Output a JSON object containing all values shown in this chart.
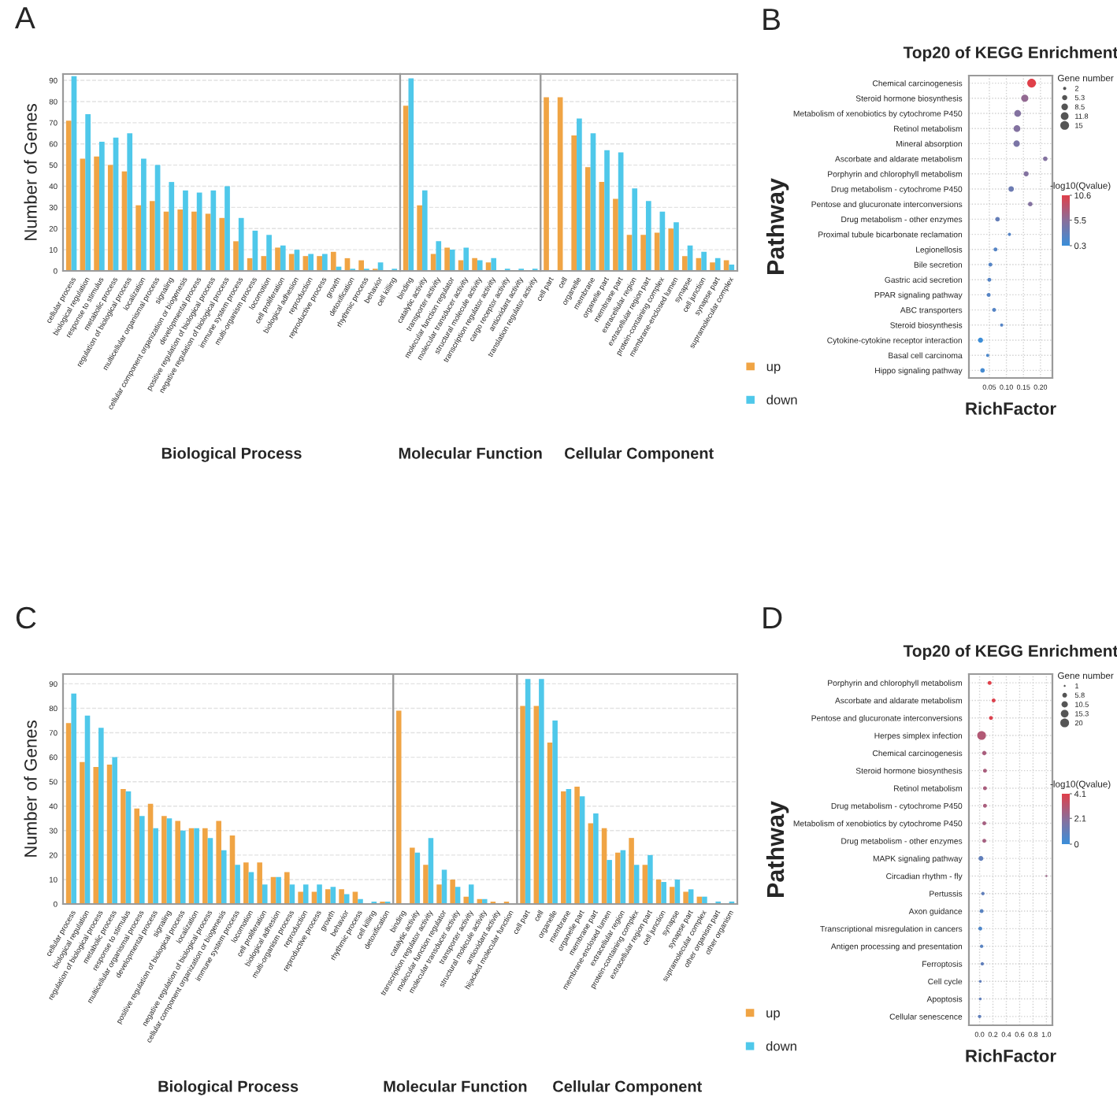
{
  "chart_data": [
    {
      "type": "bar",
      "annotations": [
        "A"
      ],
      "xlabel": "Biological Process",
      "ylabel": "Number of Genes",
      "grid": "y",
      "ylim": [
        0,
        93
      ],
      "yticks": [
        0,
        10,
        20,
        30,
        40,
        50,
        60,
        70,
        80,
        90
      ],
      "categories": [
        "cellular process",
        "biological regulation",
        "response to stimulus",
        "metabolic process",
        "regulation of biological process",
        "localization",
        "multicellular organismal process",
        "signaling",
        "cellular component organization or biogenesis",
        "developmental process",
        "positive regulation of biological process",
        "negative regulation of biological process",
        "immune system process",
        "multi-organism process",
        "locomotion",
        "cell proliferation",
        "biological adhesion",
        "reproduction",
        "reproductive process",
        "growth",
        "detoxification",
        "rhythmic process",
        "behavior",
        "cell killing"
      ],
      "series": [
        {
          "color": "#f0a444",
          "values": [
            71,
            53,
            54,
            50,
            47,
            31,
            33,
            28,
            29,
            28,
            27,
            25,
            14,
            6,
            7,
            11,
            8,
            7,
            7,
            9,
            6,
            5,
            1,
            0
          ]
        },
        {
          "color": "#4fc8ea",
          "values": [
            92,
            74,
            61,
            63,
            65,
            53,
            50,
            42,
            38,
            37,
            38,
            40,
            25,
            19,
            17,
            12,
            10,
            8,
            8,
            2,
            1,
            1,
            4,
            1
          ]
        }
      ]
    },
    {
      "type": "bar",
      "xlabel": "Molecular Function",
      "grid": "y",
      "tick_labels": "x",
      "ylim": [
        0,
        93
      ],
      "yticks": [
        0,
        10,
        20,
        30,
        40,
        50,
        60,
        70,
        80,
        90
      ],
      "categories": [
        "binding",
        "catalytic activity",
        "transporter activity",
        "molecular function regulator",
        "molecular transducer activity",
        "structural molecule activity",
        "transcription regulator activity",
        "cargo receptor activity",
        "antioxidant activity",
        "translation regulator activity"
      ],
      "series": [
        {
          "color": "#f0a444",
          "values": [
            78,
            31,
            8,
            11,
            5,
            6,
            4,
            0,
            0,
            0
          ]
        },
        {
          "color": "#4fc8ea",
          "values": [
            91,
            38,
            14,
            10,
            11,
            5,
            6,
            1,
            1,
            1
          ]
        }
      ]
    },
    {
      "type": "bar",
      "xlabel": "Cellular Component",
      "grid": "y",
      "tick_labels": "x",
      "legend": "bottom right",
      "ylim": [
        0,
        93
      ],
      "yticks": [
        0,
        10,
        20,
        30,
        40,
        50,
        60,
        70,
        80,
        90
      ],
      "categories": [
        "cell part",
        "cell",
        "organelle",
        "membrane",
        "organelle part",
        "membrane part",
        "extracellular region",
        "extracellular region part",
        "protein-containing complex",
        "membrane-enclosed lumen",
        "synapse",
        "cell junction",
        "synapse part",
        "supramolecular complex"
      ],
      "series": [
        {
          "name": "up",
          "color": "#f0a444",
          "values": [
            82,
            82,
            64,
            49,
            42,
            34,
            17,
            17,
            18,
            20,
            7,
            6,
            4,
            5
          ]
        },
        {
          "name": "down",
          "color": "#4fc8ea",
          "values": [
            null,
            null,
            72,
            65,
            57,
            56,
            39,
            33,
            28,
            23,
            12,
            9,
            6,
            3
          ]
        }
      ]
    },
    {
      "type": "bubble",
      "orientation": "horizontal",
      "annotations": [
        "B"
      ],
      "title": "Top20 of KEGG Enrichment",
      "xlabel": "RichFactor",
      "ylabel": "Pathway",
      "legend_title": "Gene number",
      "clabel": "-log10(Qvalue)",
      "grid": true,
      "xlim": [
        -0.01,
        0.235
      ],
      "xticks": [
        {
          "value": 0.05,
          "label": "0.05"
        },
        {
          "value": 0.1,
          "label": "0.10"
        },
        0.15,
        {
          "value": 0.2,
          "label": "0.20"
        }
      ],
      "categories": [
        "Chemical carcinogenesis",
        "Steroid hormone biosynthesis",
        "Metabolism of xenobiotics by cytochrome P450",
        "Retinol metabolism",
        "Mineral absorption",
        "Ascorbate and aldarate metabolism",
        "Porphyrin and chlorophyll metabolism",
        "Drug metabolism - cytochrome P450",
        "Pentose and glucuronate interconversions",
        "Drug metabolism - other enzymes",
        "Proximal tubule bicarbonate reclamation",
        "Legionellosis",
        "Bile secretion",
        "Gastric acid secretion",
        "PPAR signaling pathway",
        "ABC transporters",
        "Steroid biosynthesis",
        "Cytokine-cytokine receptor interaction",
        "Basal cell carcinoma",
        "Hippo signaling pathway"
      ],
      "values": [
        0.174,
        0.154,
        0.133,
        0.131,
        0.13,
        0.214,
        0.158,
        0.114,
        0.17,
        0.074,
        0.109,
        0.068,
        0.053,
        0.05,
        0.048,
        0.064,
        0.086,
        0.024,
        0.045,
        0.03
      ],
      "sizes": [
        15,
        10,
        9,
        9,
        8,
        4,
        5,
        6,
        4,
        4,
        2,
        3,
        3,
        3,
        3,
        3,
        2,
        5,
        2,
        4
      ],
      "size_legend": [
        2,
        5.3,
        8.5,
        11.8,
        15
      ],
      "cvalues": [
        10.6,
        6,
        5,
        5,
        4.5,
        5,
        5,
        3.5,
        5,
        3,
        2,
        2,
        2,
        2,
        2,
        2,
        2,
        0.5,
        1.5,
        1
      ],
      "clim": [
        0.3,
        10.6
      ],
      "cticks": [
        0.3,
        5.5,
        10.6
      ]
    },
    {
      "type": "bar",
      "annotations": [
        "C"
      ],
      "xlabel": "Biological Process",
      "ylabel": "Number of Genes",
      "grid": "y",
      "ylim": [
        0,
        94
      ],
      "yticks": [
        0,
        10,
        20,
        30,
        40,
        50,
        60,
        70,
        80,
        90
      ],
      "categories": [
        "cellular process",
        "biological regulation",
        "regulation of biological process",
        "metabolic process",
        "response to stimulus",
        "multicellular organismal process",
        "developmental process",
        "signaling",
        "positive regulation of biological process",
        "localization",
        "negative regulation of biological process",
        "cellular component organization or biogenesis",
        "immune system process",
        "locomotion",
        "cell proliferation",
        "biological adhesion",
        "multi-organism process",
        "reproduction",
        "reproductive process",
        "growth",
        "behavior",
        "rhythmic process",
        "cell killing",
        "detoxification"
      ],
      "series": [
        {
          "color": "#f0a444",
          "values": [
            74,
            58,
            56,
            57,
            47,
            39,
            41,
            36,
            34,
            31,
            31,
            34,
            28,
            17,
            17,
            11,
            13,
            5,
            5,
            6,
            6,
            5,
            0,
            1
          ]
        },
        {
          "color": "#4fc8ea",
          "values": [
            86,
            77,
            72,
            60,
            46,
            36,
            31,
            35,
            30,
            31,
            27,
            22,
            16,
            13,
            8,
            11,
            8,
            8,
            8,
            7,
            4,
            2,
            1,
            1
          ]
        }
      ]
    },
    {
      "type": "bar",
      "xlabel": "Molecular Function",
      "grid": "y",
      "tick_labels": "x",
      "ylim": [
        0,
        94
      ],
      "yticks": [
        0,
        10,
        20,
        30,
        40,
        50,
        60,
        70,
        80,
        90
      ],
      "categories": [
        "binding",
        "catalytic activity",
        "transcription regulator activity",
        "molecular function regulator",
        "molecular transducer activity",
        "transporter activity",
        "structural molecule activity",
        "antioxidant activity",
        "hijacked molecular function"
      ],
      "series": [
        {
          "color": "#f0a444",
          "values": [
            79,
            23,
            16,
            8,
            10,
            3,
            2,
            1,
            1
          ]
        },
        {
          "color": "#4fc8ea",
          "values": [
            null,
            21,
            27,
            14,
            7,
            8,
            2,
            0,
            0
          ]
        }
      ]
    },
    {
      "type": "bar",
      "xlabel": "Cellular Component",
      "grid": "y",
      "tick_labels": "x",
      "legend": "bottom right",
      "ylim": [
        0,
        94
      ],
      "yticks": [
        0,
        10,
        20,
        30,
        40,
        50,
        60,
        70,
        80,
        90
      ],
      "categories": [
        "cell part",
        "cell",
        "organelle",
        "membrane",
        "organelle part",
        "membrane part",
        "membrane-enclosed lumen",
        "extracellular region",
        "protein-containing complex",
        "extracellular region part",
        "cell junction",
        "synapse",
        "synapse part",
        "supramolecular complex",
        "other organism part",
        "other organism"
      ],
      "series": [
        {
          "name": "up",
          "color": "#f0a444",
          "values": [
            81,
            81,
            66,
            46,
            48,
            33,
            31,
            21,
            27,
            16,
            10,
            7,
            5,
            3,
            0,
            0
          ]
        },
        {
          "name": "down",
          "color": "#4fc8ea",
          "values": [
            92,
            92,
            75,
            47,
            44,
            37,
            18,
            22,
            16,
            20,
            9,
            10,
            6,
            3,
            1,
            1
          ]
        }
      ]
    },
    {
      "type": "bubble",
      "orientation": "horizontal",
      "annotations": [
        "D"
      ],
      "title": "Top20 of KEGG Enrichment",
      "xlabel": "RichFactor",
      "ylabel": "Pathway",
      "legend_title": "Gene number",
      "clabel": "-log10(Qvalue)",
      "grid": true,
      "xlim": [
        -0.16,
        1.09
      ],
      "xticks": [
        {
          "value": 0,
          "label": "0.0"
        },
        0.2,
        0.4,
        0.6,
        0.8,
        {
          "value": 1,
          "label": "1.0"
        }
      ],
      "categories": [
        "Porphyrin and chlorophyll metabolism",
        "Ascorbate and aldarate metabolism",
        "Pentose and glucuronate interconversions",
        "Herpes simplex infection",
        "Chemical carcinogenesis",
        "Steroid hormone biosynthesis",
        "Retinol metabolism",
        "Drug metabolism - cytochrome P450",
        "Metabolism of xenobiotics by cytochrome P450",
        "Drug metabolism - other enzymes",
        "MAPK signaling pathway",
        "Circadian rhythm - fly",
        "Pertussis",
        "Axon guidance",
        "Transcriptional misregulation in cancers",
        "Antigen processing and presentation",
        "Ferroptosis",
        "Cell cycle",
        "Apoptosis",
        "Cellular senescence"
      ],
      "values": [
        0.15,
        0.21,
        0.17,
        0.03,
        0.07,
        0.08,
        0.08,
        0.08,
        0.07,
        0.07,
        0.02,
        1.0,
        0.05,
        0.03,
        0.01,
        0.03,
        0.04,
        0.01,
        0.01,
        0.0
      ],
      "sizes": [
        4,
        4,
        4,
        20,
        5,
        4,
        4,
        4,
        4,
        4,
        6,
        1,
        3,
        4,
        4,
        3,
        3,
        2,
        2,
        3
      ],
      "size_legend": [
        1,
        5.8,
        10.5,
        15.3,
        20
      ],
      "cvalues": [
        4.1,
        4,
        4,
        3,
        2.8,
        2.8,
        2.8,
        2.8,
        2.7,
        2.7,
        1,
        2.5,
        1,
        0.8,
        0.5,
        0.8,
        1,
        1,
        1,
        1
      ],
      "clim": [
        0,
        4.1
      ],
      "cticks": [
        0,
        2.1,
        4.1
      ]
    }
  ]
}
